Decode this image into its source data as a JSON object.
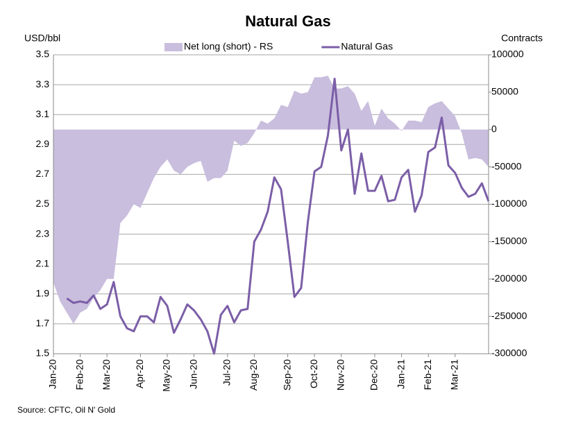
{
  "chart_data": {
    "type": "line",
    "title": "Natural Gas",
    "y_label": "USD/bbl",
    "y2_label": "Contracts",
    "source": "Source: CFTC, Oil N' Gold",
    "categories": [
      "Jan-20",
      null,
      null,
      null,
      "Feb-20",
      null,
      null,
      null,
      "Mar-20",
      null,
      null,
      null,
      null,
      "Apr-20",
      null,
      null,
      null,
      "May-20",
      null,
      null,
      null,
      "Jun-20",
      null,
      null,
      null,
      null,
      "Jul-20",
      null,
      null,
      null,
      "Aug-20",
      null,
      null,
      null,
      null,
      "Sep-20",
      null,
      null,
      null,
      "Oct-20",
      null,
      null,
      null,
      "Nov-20",
      null,
      null,
      null,
      null,
      "Dec-20",
      null,
      null,
      null,
      "Jan-21",
      null,
      null,
      null,
      "Feb-21",
      null,
      null,
      null,
      "Mar-21",
      null,
      null,
      null,
      null,
      null
    ],
    "series": [
      {
        "name": "Net long (short) - RS",
        "type": "area",
        "axis": "y2",
        "color": "#c9bedd",
        "values": [
          -205000,
          -230000,
          -245000,
          -260000,
          -245000,
          -240000,
          -225000,
          -215000,
          -200000,
          -200000,
          -125000,
          -115000,
          -100000,
          -105000,
          -85000,
          -65000,
          -50000,
          -40000,
          -55000,
          -60000,
          -50000,
          -45000,
          -42000,
          -70000,
          -65000,
          -65000,
          -55000,
          -15000,
          -22000,
          -18000,
          -5000,
          12000,
          8000,
          15000,
          33000,
          30000,
          52000,
          48000,
          50000,
          70000,
          70000,
          72000,
          55000,
          55000,
          58000,
          48000,
          25000,
          38000,
          5000,
          28000,
          15000,
          8000,
          -2000,
          12000,
          12000,
          10000,
          30000,
          35000,
          38000,
          28000,
          18000,
          -5000,
          -40000,
          -38000,
          -40000,
          -50000
        ]
      },
      {
        "name": "Natural Gas",
        "type": "line",
        "axis": "y",
        "color": "#7b5ea7",
        "values": [
          null,
          null,
          1.87,
          1.84,
          1.85,
          1.84,
          1.89,
          1.8,
          1.83,
          1.98,
          1.75,
          1.67,
          1.65,
          1.75,
          1.75,
          1.71,
          1.88,
          1.82,
          1.64,
          1.73,
          1.83,
          1.79,
          1.73,
          1.65,
          1.5,
          1.76,
          1.82,
          1.71,
          1.79,
          1.8,
          2.25,
          2.33,
          2.45,
          2.68,
          2.6,
          2.25,
          1.88,
          1.94,
          2.38,
          2.72,
          2.75,
          2.96,
          3.34,
          2.86,
          3.0,
          2.57,
          2.84,
          2.59,
          2.59,
          2.69,
          2.52,
          2.53,
          2.68,
          2.73,
          2.45,
          2.56,
          2.85,
          2.88,
          3.08,
          2.76,
          2.71,
          2.61,
          2.55,
          2.57,
          2.64,
          2.52
        ]
      }
    ],
    "ylim": [
      1.5,
      3.5
    ],
    "yticks": [
      1.5,
      1.7,
      1.9,
      2.1,
      2.3,
      2.5,
      2.7,
      2.9,
      3.1,
      3.3,
      3.5
    ],
    "y2lim": [
      -300000,
      100000
    ],
    "y2ticks": [
      -300000,
      -250000,
      -200000,
      -150000,
      -100000,
      -50000,
      0,
      50000,
      100000
    ],
    "grid": true,
    "legend": "top"
  }
}
